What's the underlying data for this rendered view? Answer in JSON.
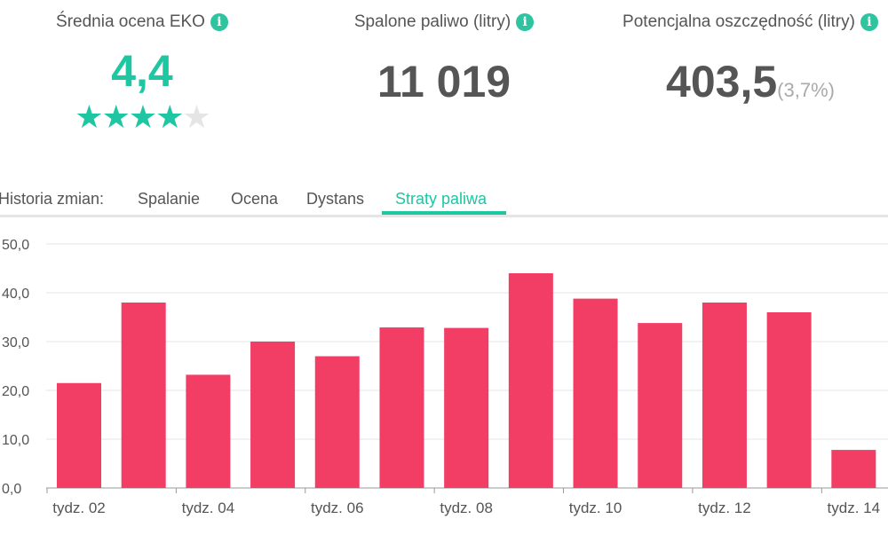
{
  "kpis": {
    "eco_score": {
      "title": "Średnia ocena EKO",
      "value": "4,4",
      "stars": 4,
      "max_stars": 5
    },
    "fuel_burned": {
      "title": "Spalone paliwo (litry)",
      "value": "11 019"
    },
    "potential_savings": {
      "title": "Potencjalna oszczędność (litry)",
      "value": "403,5",
      "percent": "(3,7%)"
    }
  },
  "tabs": {
    "label": "Historia zmian:",
    "items": [
      "Spalanie",
      "Ocena",
      "Dystans",
      "Straty paliwa"
    ],
    "active": "Straty paliwa"
  },
  "colors": {
    "accent": "#1ec6a1",
    "bar": "#f23d64"
  },
  "chart_data": {
    "type": "bar",
    "categories": [
      "tydz. 02",
      "tydz. 03",
      "tydz. 04",
      "tydz. 05",
      "tydz. 06",
      "tydz. 07",
      "tydz. 08",
      "tydz. 09",
      "tydz. 10",
      "tydz. 11",
      "tydz. 12",
      "tydz. 13",
      "tydz. 14"
    ],
    "tick_labels": [
      "tydz. 02",
      "tydz. 04",
      "tydz. 06",
      "tydz. 08",
      "tydz. 10",
      "tydz. 12",
      "tydz. 14"
    ],
    "values": [
      21.5,
      38,
      23.2,
      30,
      27,
      32.9,
      32.8,
      44,
      38.8,
      33.8,
      38,
      36,
      7.8
    ],
    "yticks": [
      "0,0",
      "10,0",
      "20,0",
      "30,0",
      "40,0",
      "50,0"
    ],
    "ylim": [
      0,
      50
    ],
    "grid": true
  }
}
